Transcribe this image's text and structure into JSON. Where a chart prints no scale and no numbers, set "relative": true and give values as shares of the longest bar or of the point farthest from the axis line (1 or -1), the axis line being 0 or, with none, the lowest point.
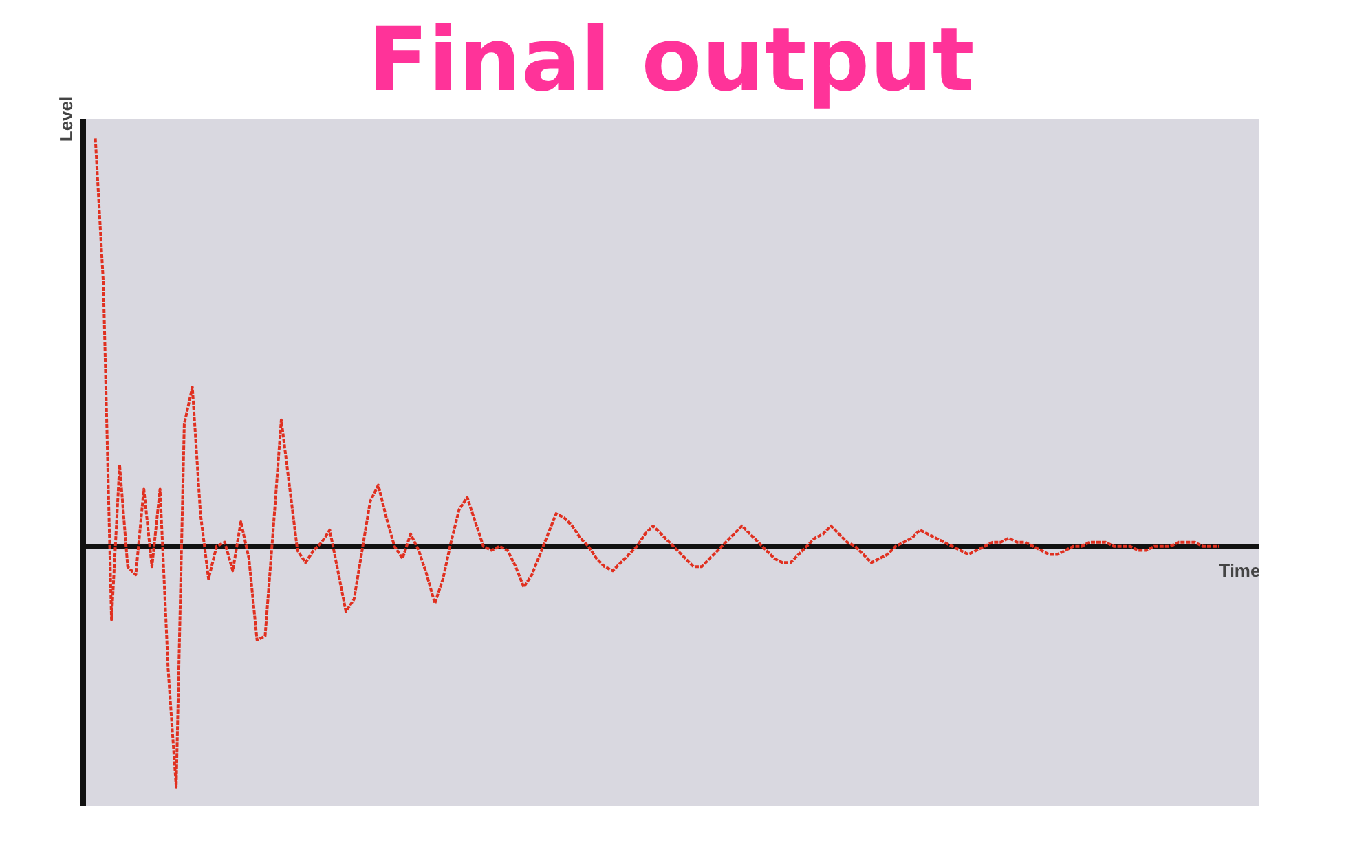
{
  "chart_data": {
    "type": "line",
    "title": "Final output",
    "xlabel": "Time",
    "ylabel": "Level",
    "relative": true,
    "line_style": "dashed",
    "categories": [
      null,
      null,
      null,
      null,
      null,
      null,
      null,
      null,
      null,
      null,
      null,
      null,
      null,
      null,
      null,
      null,
      null,
      null,
      null,
      null,
      null,
      null,
      null,
      null,
      null,
      null,
      null,
      null,
      null,
      null,
      null,
      null,
      null,
      null,
      null,
      null,
      null,
      null,
      null,
      null,
      null,
      null,
      null,
      null,
      null,
      null,
      null,
      null,
      null,
      null,
      null,
      null,
      null,
      null,
      null,
      null,
      null,
      null,
      null,
      null,
      null,
      null,
      null,
      null,
      null,
      null,
      null,
      null,
      null,
      null,
      null,
      null,
      null,
      null,
      null,
      null,
      null,
      null,
      null,
      null,
      null,
      null,
      null,
      null,
      null,
      null,
      null,
      null,
      null,
      null,
      null,
      null,
      null,
      null,
      null,
      null,
      null,
      null,
      null,
      null,
      null,
      null,
      null,
      null,
      null,
      null,
      null,
      null,
      null,
      null,
      null,
      null,
      null,
      null,
      null,
      null,
      null,
      null,
      null,
      null,
      null,
      null,
      null,
      null,
      null,
      null,
      null,
      null,
      null,
      null,
      null,
      null,
      null,
      null,
      null,
      null,
      null,
      null,
      null,
      null
    ],
    "series": [
      {
        "color": "#e03020",
        "values": [
          1.0,
          0.64,
          -0.18,
          0.2,
          -0.05,
          -0.07,
          0.14,
          -0.05,
          0.14,
          -0.3,
          -0.59,
          0.3,
          0.39,
          0.08,
          -0.08,
          0.0,
          0.01,
          -0.06,
          0.06,
          -0.03,
          -0.23,
          -0.22,
          0.04,
          0.31,
          0.15,
          -0.01,
          -0.04,
          -0.01,
          0.01,
          0.04,
          -0.06,
          -0.16,
          -0.13,
          -0.01,
          0.11,
          0.15,
          0.07,
          0.0,
          -0.03,
          0.03,
          -0.01,
          -0.07,
          -0.14,
          -0.08,
          0.01,
          0.09,
          0.12,
          0.06,
          0.0,
          -0.01,
          0.0,
          -0.01,
          -0.05,
          -0.1,
          -0.07,
          -0.02,
          0.03,
          0.08,
          0.07,
          0.05,
          0.02,
          0.0,
          -0.03,
          -0.05,
          -0.06,
          -0.04,
          -0.02,
          0.0,
          0.03,
          0.05,
          0.03,
          0.01,
          -0.01,
          -0.03,
          -0.05,
          -0.05,
          -0.03,
          -0.01,
          0.01,
          0.03,
          0.05,
          0.03,
          0.01,
          -0.01,
          -0.03,
          -0.04,
          -0.04,
          -0.02,
          0.0,
          0.02,
          0.03,
          0.05,
          0.03,
          0.01,
          0.0,
          -0.02,
          -0.04,
          -0.03,
          -0.02,
          0.0,
          0.01,
          0.02,
          0.04,
          0.03,
          0.02,
          0.01,
          0.0,
          -0.01,
          -0.02,
          -0.01,
          0.0,
          0.01,
          0.01,
          0.02,
          0.01,
          0.01,
          0.0,
          -0.01,
          -0.02,
          -0.02,
          -0.01,
          0.0,
          0.0,
          0.01,
          0.01,
          0.01,
          0.0,
          0.0,
          0.0,
          -0.01,
          -0.01,
          0.0,
          0.0,
          0.0,
          0.01,
          0.01,
          0.01,
          0.0,
          0.0,
          0.0
        ]
      }
    ]
  }
}
